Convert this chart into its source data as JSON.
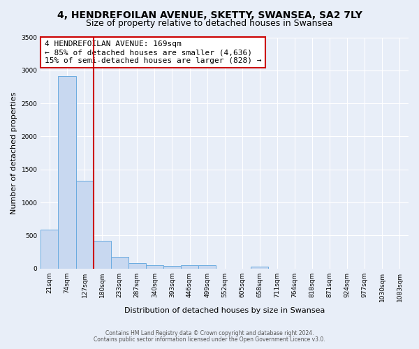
{
  "title": "4, HENDREFOILAN AVENUE, SKETTY, SWANSEA, SA2 7LY",
  "subtitle": "Size of property relative to detached houses in Swansea",
  "xlabel": "Distribution of detached houses by size in Swansea",
  "ylabel": "Number of detached properties",
  "footnote1": "Contains HM Land Registry data © Crown copyright and database right 2024.",
  "footnote2": "Contains public sector information licensed under the Open Government Licence v3.0.",
  "bin_labels": [
    "21sqm",
    "74sqm",
    "127sqm",
    "180sqm",
    "233sqm",
    "287sqm",
    "340sqm",
    "393sqm",
    "446sqm",
    "499sqm",
    "552sqm",
    "605sqm",
    "658sqm",
    "711sqm",
    "764sqm",
    "818sqm",
    "871sqm",
    "924sqm",
    "977sqm",
    "1030sqm",
    "1083sqm"
  ],
  "bar_values": [
    590,
    2910,
    1330,
    420,
    175,
    85,
    45,
    35,
    50,
    45,
    0,
    0,
    25,
    0,
    0,
    0,
    0,
    0,
    0,
    0,
    0
  ],
  "bar_color": "#c8d8f0",
  "bar_edgecolor": "#6aabe0",
  "vline_x_idx": 3,
  "vline_color": "#cc0000",
  "annotation_title": "4 HENDREFOILAN AVENUE: 169sqm",
  "annotation_line1": "← 85% of detached houses are smaller (4,636)",
  "annotation_line2": "15% of semi-detached houses are larger (828) →",
  "annotation_box_edgecolor": "#cc0000",
  "annotation_box_facecolor": "#ffffff",
  "ylim": [
    0,
    3500
  ],
  "yticks": [
    0,
    500,
    1000,
    1500,
    2000,
    2500,
    3000,
    3500
  ],
  "bg_color": "#e8eef8",
  "grid_color": "#ffffff",
  "title_fontsize": 10,
  "subtitle_fontsize": 9,
  "annotation_fontsize": 8,
  "footnote_fontsize": 5.5,
  "axis_label_fontsize": 8,
  "tick_fontsize": 6.5
}
